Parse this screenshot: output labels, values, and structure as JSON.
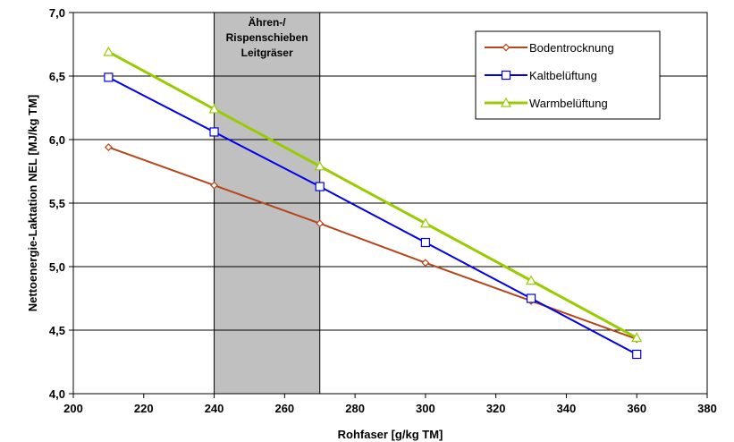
{
  "chart_data": {
    "type": "line",
    "xlabel": "Rohfaser [g/kg TM]",
    "ylabel": "Nettoenergie-Laktation NEL [MJ/kg TM]",
    "xlim": [
      200,
      380
    ],
    "ylim": [
      4.0,
      7.0
    ],
    "xticks": [
      200,
      220,
      240,
      260,
      280,
      300,
      320,
      340,
      360,
      380
    ],
    "yticks": [
      "4,0",
      "4,5",
      "5,0",
      "5,5",
      "6,0",
      "6,5",
      "7,0"
    ],
    "grid": "horizontal",
    "legend_position": "top-right",
    "band": {
      "x_range": [
        240,
        270
      ],
      "label_lines": [
        "Ähren-/",
        "Rispenschieben",
        "Leitgräser"
      ],
      "color": "#c0c0c0"
    },
    "x": [
      210,
      240,
      270,
      300,
      330,
      360
    ],
    "series": [
      {
        "name": "Bodentrocknung",
        "values": [
          5.94,
          5.64,
          5.34,
          5.03,
          4.73,
          4.43
        ],
        "color": "#b5461a",
        "marker": "diamond"
      },
      {
        "name": "Kaltbelüftung",
        "values": [
          6.49,
          6.06,
          5.63,
          5.19,
          4.75,
          4.31
        ],
        "color": "#0000ee",
        "marker": "square"
      },
      {
        "name": "Warmbelüftung",
        "values": [
          6.69,
          6.24,
          5.79,
          5.34,
          4.89,
          4.44
        ],
        "color": "#99cc00",
        "marker": "triangle"
      }
    ]
  }
}
